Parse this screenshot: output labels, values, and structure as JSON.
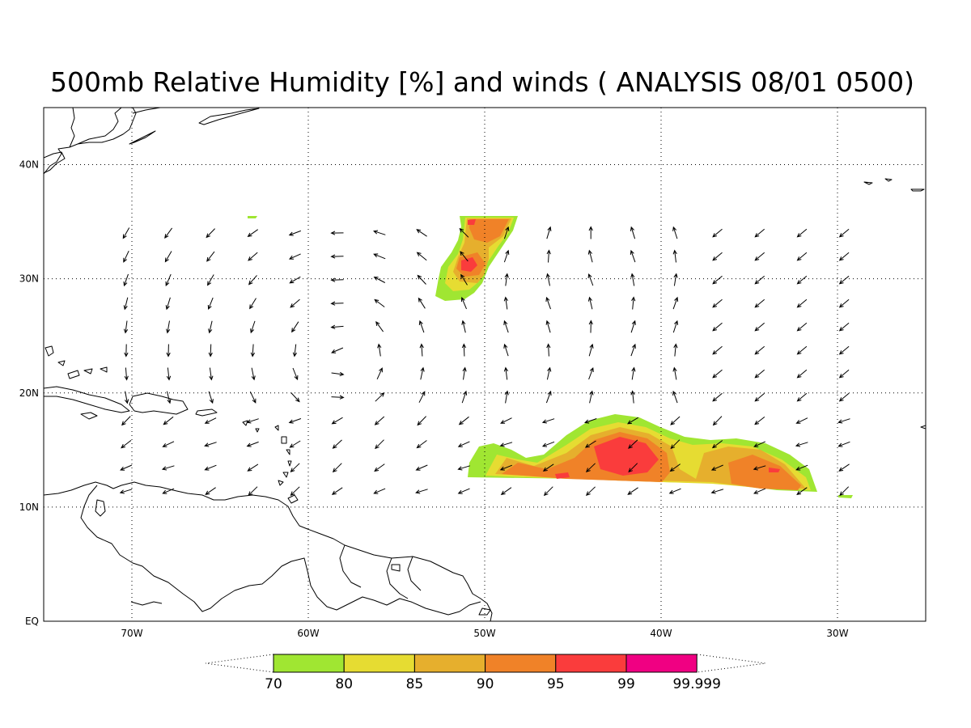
{
  "title": "500mb Relative Humidity [%] and winds ( ANALYSIS 08/01 0500)",
  "axes": {
    "x_labels": [
      {
        "lon": -70,
        "label": "70W"
      },
      {
        "lon": -60,
        "label": "60W"
      },
      {
        "lon": -50,
        "label": "50W"
      },
      {
        "lon": -40,
        "label": "40W"
      },
      {
        "lon": -30,
        "label": "30W"
      }
    ],
    "y_labels": [
      {
        "lat": 0,
        "label": "EQ"
      },
      {
        "lat": 10,
        "label": "10N"
      },
      {
        "lat": 20,
        "label": "20N"
      },
      {
        "lat": 30,
        "label": "30N"
      },
      {
        "lat": 40,
        "label": "40N"
      }
    ],
    "lon_range": [
      -75,
      -25
    ],
    "lat_range": [
      0,
      45
    ],
    "grid": "dotted"
  },
  "colorbar": {
    "labels": [
      "70",
      "80",
      "85",
      "90",
      "95",
      "99",
      "99.999"
    ],
    "colors": [
      "#a0e632",
      "#e6dc32",
      "#e6af2d",
      "#f08228",
      "#fa3c3c",
      "#f00082"
    ]
  },
  "colors": {
    "green": "#a0e632",
    "yellow": "#e6dc32",
    "orange_light": "#e6af2d",
    "orange": "#f08228",
    "red": "#fa3c3c",
    "magenta": "#f00082"
  },
  "chart_data": {
    "type": "heatmap",
    "title": "500mb Relative Humidity [%] and winds ( ANALYSIS 08/01 0500)",
    "levels": [
      70,
      80,
      85,
      90,
      95,
      99,
      99.999
    ],
    "humid_regions": [
      {
        "region": "north-central",
        "lon_range": [
          -53,
          -48
        ],
        "lat_range": [
          28,
          35.5
        ],
        "max_rh_level": 99
      },
      {
        "region": "tropical-band",
        "lon_range": [
          -51,
          -31
        ],
        "lat_range": [
          11.5,
          18
        ],
        "max_rh_level": 99
      }
    ],
    "wind_grid": {
      "lon_start": -70,
      "lat_start": 12,
      "spacing_deg": 2.4
    }
  }
}
